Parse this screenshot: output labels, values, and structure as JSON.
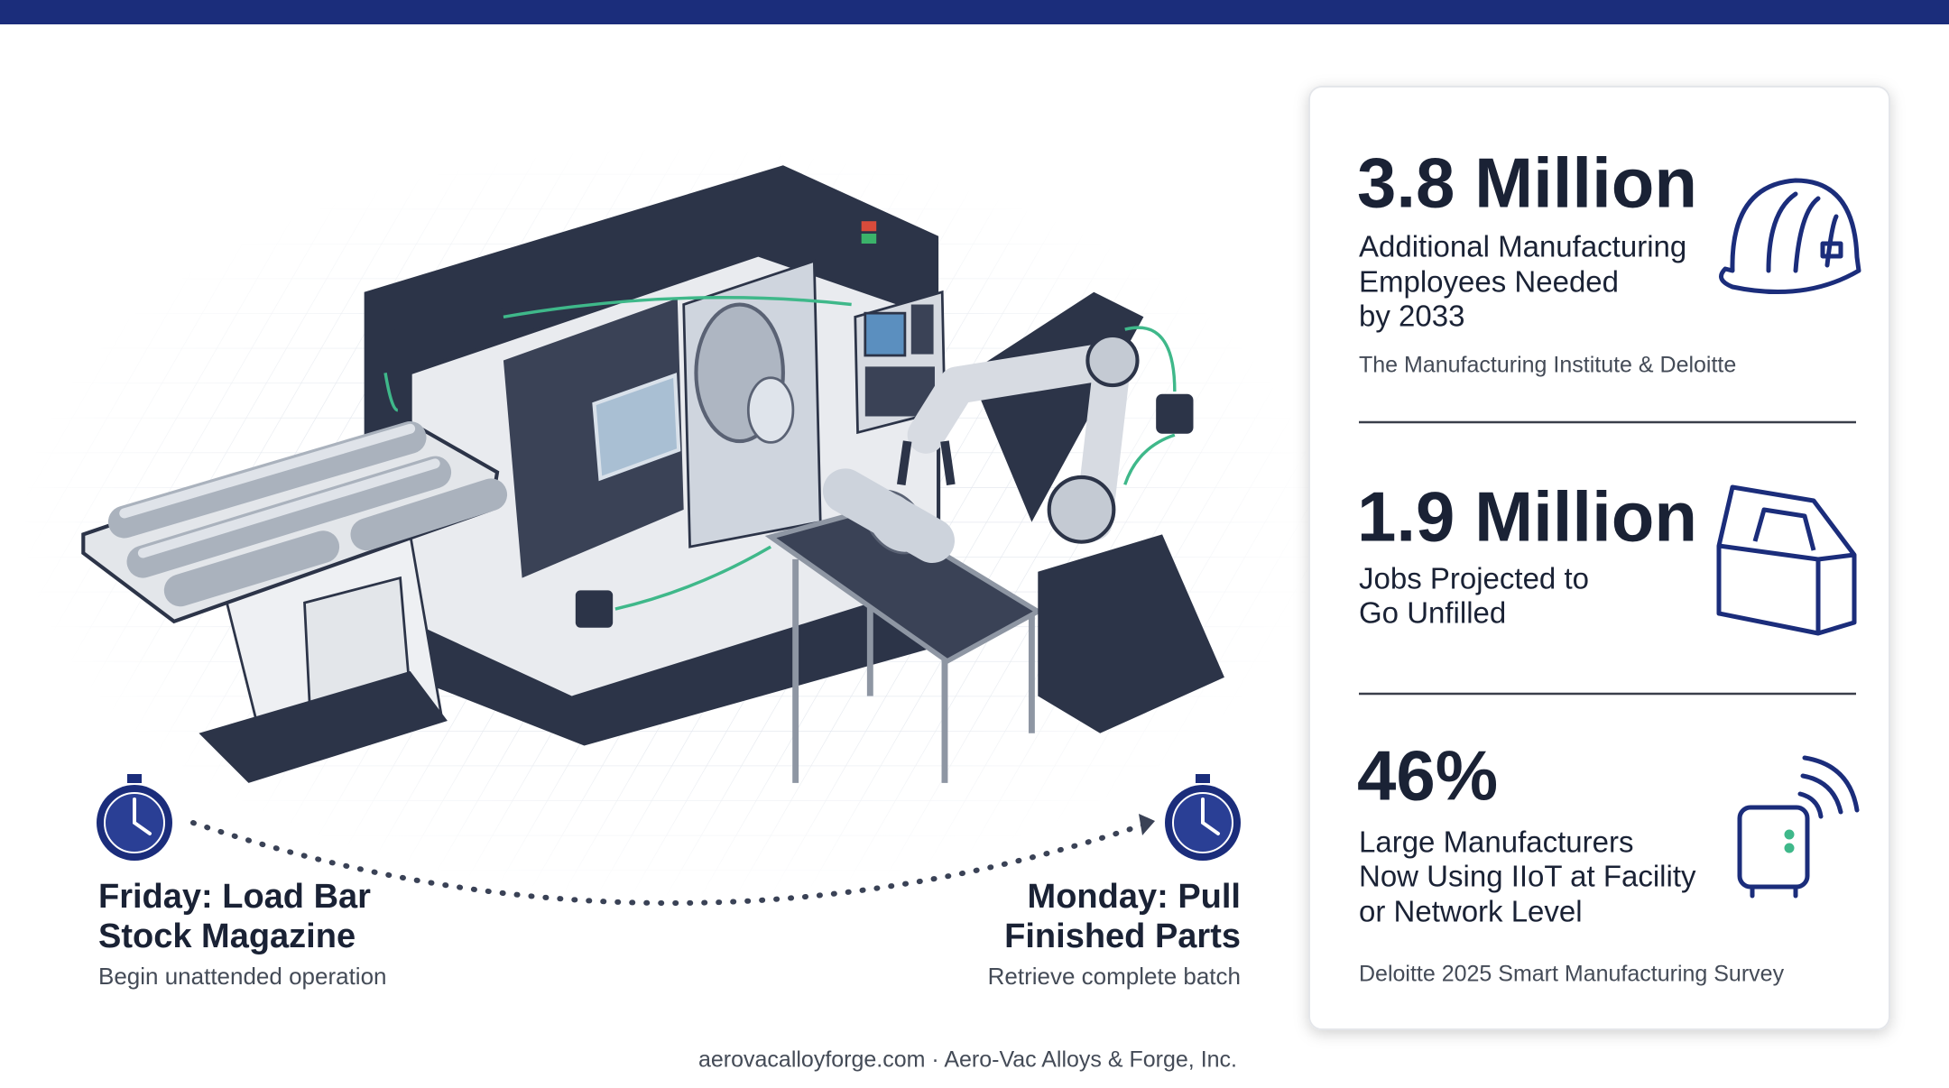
{
  "stats": [
    {
      "value": "3.8 Million",
      "description": [
        "Additional Manufacturing",
        "Employees Needed",
        "by 2033"
      ],
      "source": "The Manufacturing Institute & Deloitte"
    },
    {
      "value": "1.9 Million",
      "description": [
        "Jobs Projected to",
        "Go Unfilled"
      ]
    },
    {
      "value": "46%",
      "description": [
        "Large Manufacturers",
        "Now Using IIoT at Facility",
        "or Network Level"
      ],
      "source": "Deloitte 2025 Smart Manufacturing Survey"
    }
  ],
  "timeline": {
    "start": {
      "title": [
        "Friday: Load Bar",
        "Stock Magazine"
      ],
      "subtitle": "Begin unattended operation"
    },
    "end": {
      "title": [
        "Monday: Pull",
        "Finished Parts"
      ],
      "subtitle": "Retrieve complete batch"
    }
  },
  "footer": "aerovacalloyforge.com · Aero-Vac Alloys & Forge, Inc."
}
